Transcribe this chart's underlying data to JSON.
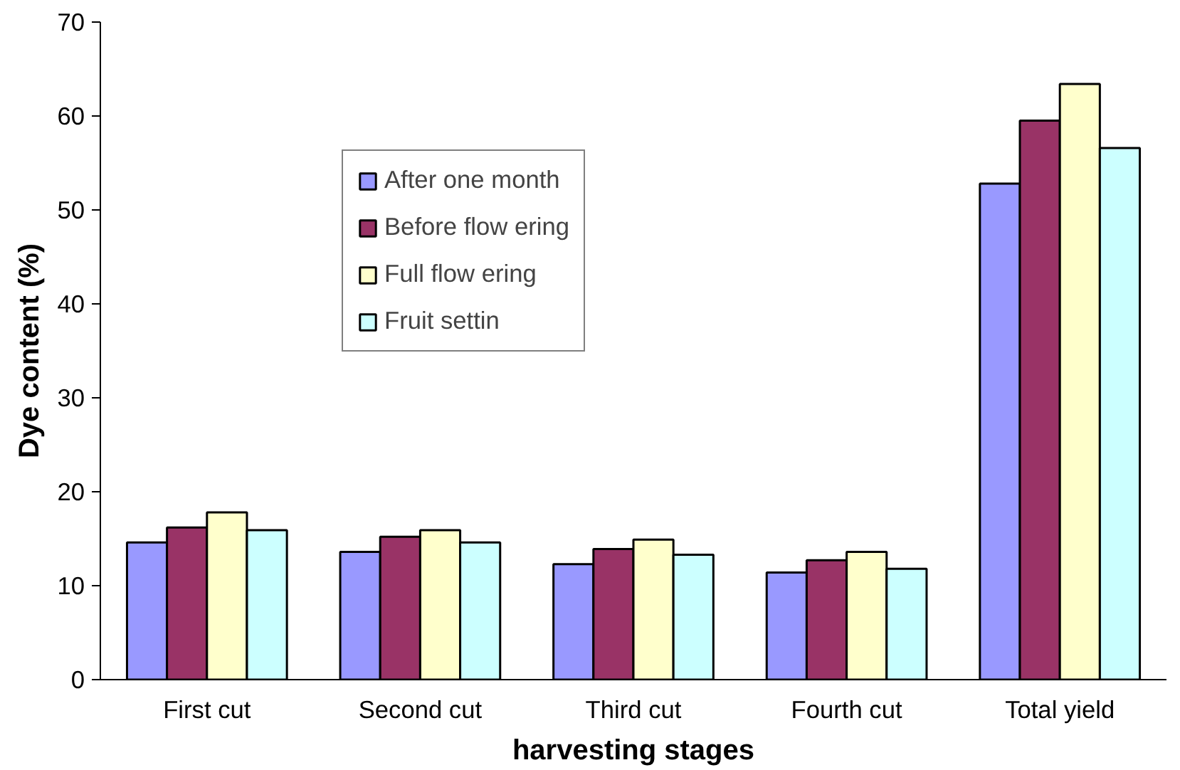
{
  "chart_data": {
    "type": "bar",
    "xlabel": "harvesting stages",
    "ylabel": "Dye content (%)",
    "categories": [
      "First cut",
      "Second cut",
      "Third cut",
      "Fourth cut",
      "Total yield"
    ],
    "series": [
      {
        "name": "After one month",
        "color": "#9999ff",
        "values": [
          14.6,
          13.6,
          12.3,
          11.4,
          52.8
        ]
      },
      {
        "name": "Before flow ering",
        "color": "#993366",
        "values": [
          16.2,
          15.2,
          13.9,
          12.7,
          59.5
        ]
      },
      {
        "name": "Full flow ering",
        "color": "#ffffcc",
        "values": [
          17.8,
          15.9,
          14.9,
          13.6,
          63.4
        ]
      },
      {
        "name": "Fruit settin",
        "color": "#ccffff",
        "values": [
          15.9,
          14.6,
          13.3,
          11.8,
          56.6
        ]
      }
    ],
    "ylim": [
      0,
      70
    ],
    "yticks": [
      0,
      10,
      20,
      30,
      40,
      50,
      60,
      70
    ],
    "grid": false,
    "legend": "top left"
  }
}
